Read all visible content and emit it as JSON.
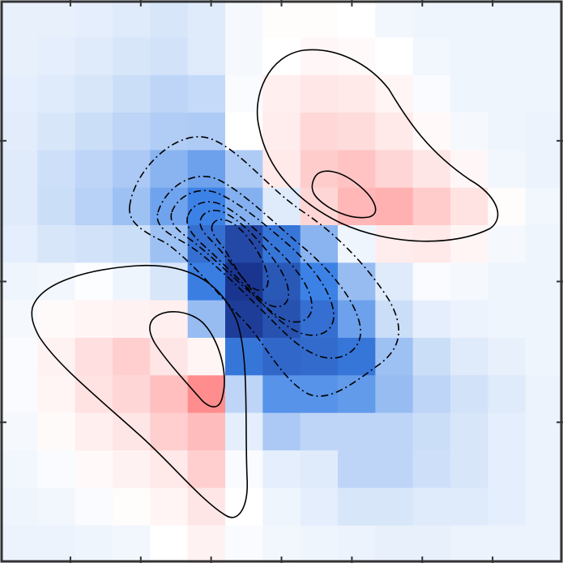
{
  "chart_data": {
    "type": "heatmap",
    "title": "",
    "xlabel": "",
    "ylabel": "",
    "grid": false,
    "legend": "none",
    "nrows": 15,
    "ncols": 15,
    "value_range": [
      -1,
      1
    ],
    "colormap": {
      "negative": "#1a3590",
      "zero": "#ffffff",
      "positive": "#ff6060"
    },
    "values": [
      [
        -0.07,
        -0.07,
        -0.08,
        -0.1,
        -0.12,
        -0.1,
        -0.03,
        0.02,
        0.02,
        0.0,
        -0.04,
        -0.05,
        -0.05,
        -0.05,
        -0.05
      ],
      [
        -0.07,
        -0.08,
        -0.1,
        -0.12,
        -0.14,
        -0.1,
        -0.03,
        0.0,
        0.05,
        0.04,
        0.0,
        -0.04,
        -0.05,
        -0.05,
        -0.05
      ],
      [
        -0.08,
        -0.1,
        -0.12,
        -0.16,
        -0.2,
        -0.18,
        -0.02,
        0.1,
        0.15,
        0.14,
        0.06,
        -0.02,
        -0.05,
        -0.05,
        -0.05
      ],
      [
        -0.09,
        -0.12,
        -0.16,
        -0.2,
        -0.24,
        -0.25,
        0.0,
        0.12,
        0.25,
        0.22,
        0.14,
        0.04,
        -0.03,
        -0.05,
        -0.06
      ],
      [
        -0.1,
        -0.15,
        -0.2,
        -0.26,
        -0.36,
        -0.45,
        -0.25,
        0.14,
        0.32,
        0.38,
        0.26,
        0.16,
        0.05,
        -0.04,
        -0.06
      ],
      [
        -0.1,
        -0.16,
        -0.22,
        -0.3,
        -0.44,
        -0.6,
        -0.38,
        -0.1,
        0.26,
        0.45,
        0.5,
        0.33,
        0.18,
        0.02,
        -0.04
      ],
      [
        -0.08,
        -0.12,
        -0.14,
        -0.16,
        -0.3,
        -0.7,
        -0.9,
        -0.66,
        -0.36,
        -0.05,
        0.12,
        0.14,
        0.06,
        -0.03,
        -0.05
      ],
      [
        -0.05,
        -0.04,
        -0.01,
        -0.05,
        -0.12,
        -0.62,
        -1.0,
        -0.82,
        -0.6,
        -0.32,
        -0.1,
        -0.02,
        -0.03,
        -0.05,
        -0.05
      ],
      [
        -0.03,
        0.03,
        0.06,
        0.08,
        0.1,
        -0.32,
        -0.96,
        -0.85,
        -0.7,
        -0.45,
        -0.16,
        -0.08,
        -0.06,
        -0.05,
        -0.05
      ],
      [
        -0.02,
        0.08,
        0.2,
        0.3,
        0.16,
        0.06,
        -0.66,
        -0.74,
        -0.72,
        -0.66,
        -0.3,
        -0.16,
        -0.1,
        -0.07,
        -0.05
      ],
      [
        -0.02,
        0.06,
        0.18,
        0.26,
        0.4,
        0.72,
        -0.2,
        -0.52,
        -0.52,
        -0.48,
        -0.32,
        -0.2,
        -0.14,
        -0.1,
        -0.06
      ],
      [
        -0.03,
        0.03,
        0.1,
        0.16,
        0.3,
        0.42,
        -0.08,
        -0.26,
        -0.2,
        -0.2,
        -0.2,
        -0.16,
        -0.12,
        -0.08,
        -0.06
      ],
      [
        -0.04,
        -0.02,
        0.04,
        0.08,
        0.14,
        0.3,
        -0.02,
        -0.08,
        -0.1,
        -0.2,
        -0.2,
        -0.15,
        -0.12,
        -0.08,
        -0.06
      ],
      [
        -0.05,
        -0.04,
        -0.02,
        0.02,
        0.06,
        0.16,
        0.0,
        -0.05,
        -0.08,
        -0.12,
        -0.12,
        -0.1,
        -0.1,
        -0.08,
        -0.06
      ],
      [
        -0.06,
        -0.06,
        -0.05,
        -0.04,
        0.0,
        0.08,
        -0.02,
        -0.04,
        -0.05,
        -0.06,
        -0.07,
        -0.07,
        -0.06,
        -0.06,
        -0.06
      ]
    ],
    "contour_levels": {
      "positive_solid": [
        0.08,
        0.45
      ],
      "negative_dashdot": [
        -0.16,
        -0.3,
        -0.45,
        -0.6,
        -0.75,
        -0.88
      ]
    },
    "ticks": {
      "top": 7,
      "bottom": 7,
      "left": 3,
      "right": 3
    }
  }
}
